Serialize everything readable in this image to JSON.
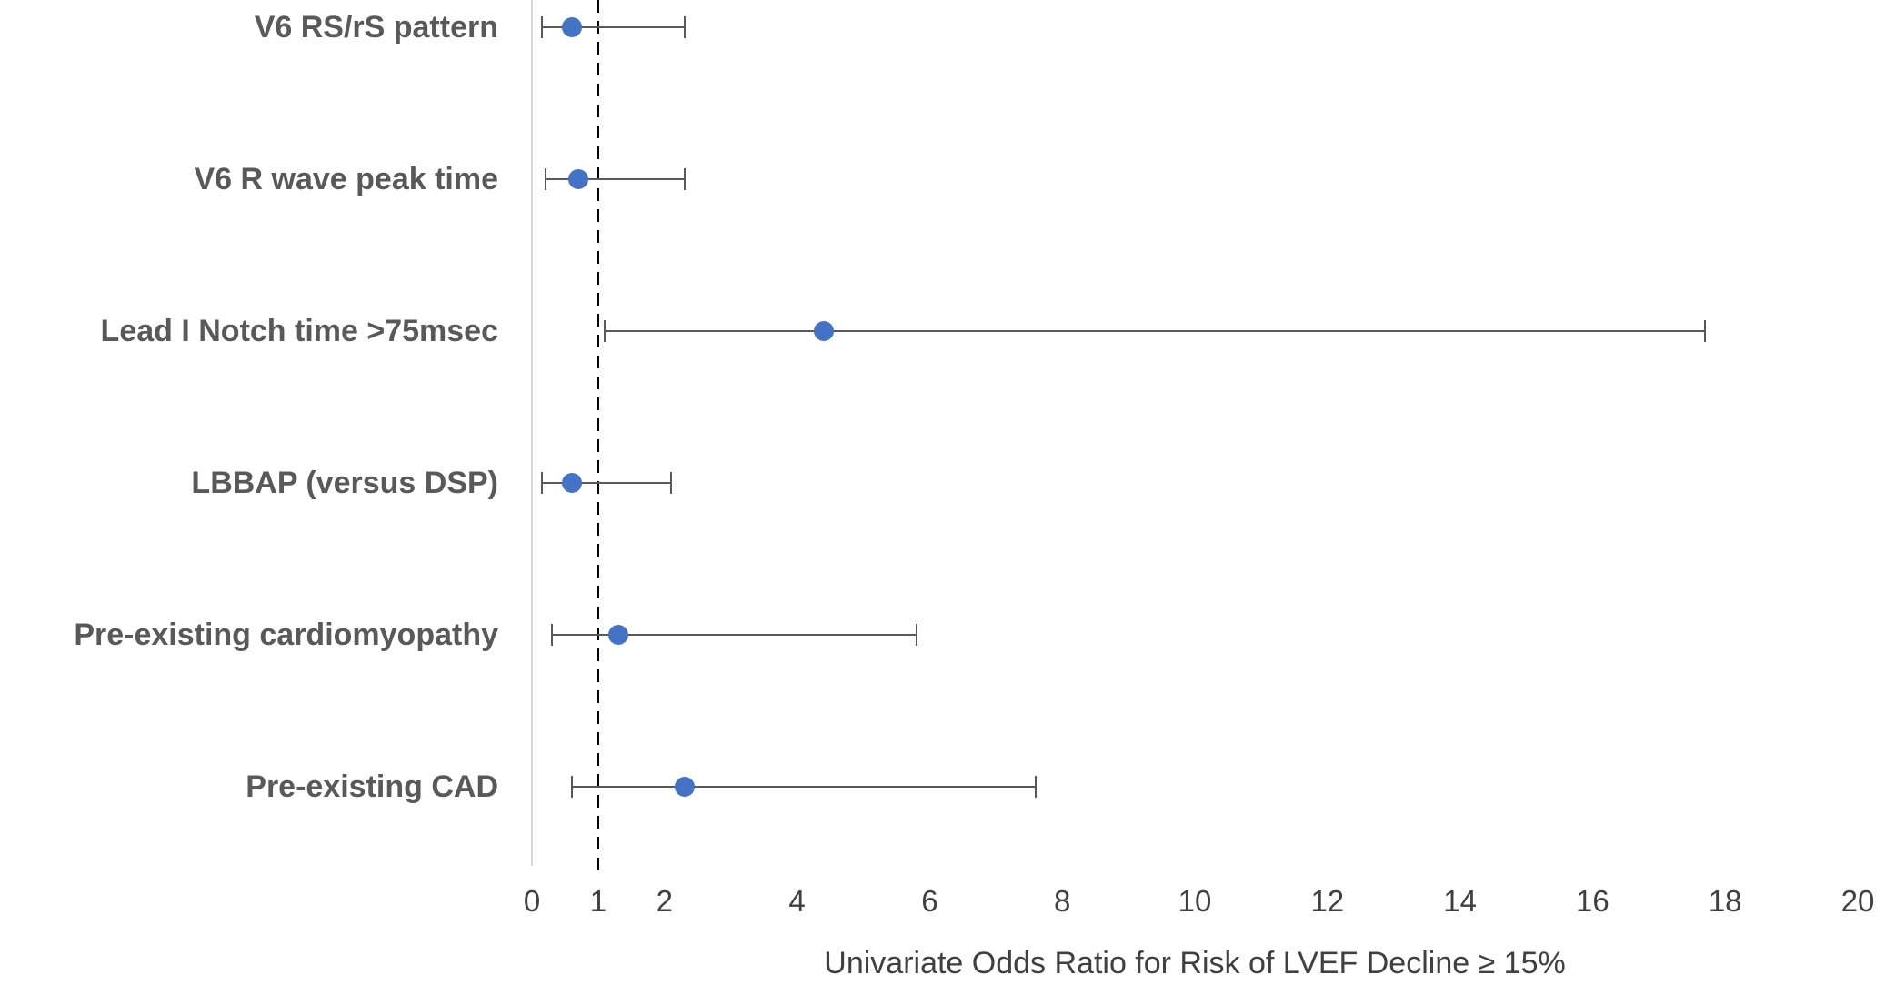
{
  "chart_data": {
    "type": "scatter",
    "subtype": "forest-plot",
    "title": "",
    "xlabel": "Univariate Odds Ratio for Risk of LVEF Decline ≥ 15%",
    "ylabel": "",
    "xlim": [
      0,
      20
    ],
    "x_ticks": [
      "0",
      "1",
      "2",
      "4",
      "6",
      "8",
      "10",
      "12",
      "14",
      "16",
      "18",
      "20"
    ],
    "reference_line_x": 1,
    "grid": false,
    "legend": "none",
    "rows": [
      {
        "label": "V6 RS/rS pattern",
        "odds_ratio": 0.6,
        "ci_low": 0.15,
        "ci_high": 2.3
      },
      {
        "label": "V6 R wave peak time",
        "odds_ratio": 0.7,
        "ci_low": 0.2,
        "ci_high": 2.3
      },
      {
        "label": "Lead I Notch time >75msec",
        "odds_ratio": 4.4,
        "ci_low": 1.1,
        "ci_high": 17.7
      },
      {
        "label": "LBBAP (versus DSP)",
        "odds_ratio": 0.6,
        "ci_low": 0.15,
        "ci_high": 2.1
      },
      {
        "label": "Pre-existing cardiomyopathy",
        "odds_ratio": 1.3,
        "ci_low": 0.3,
        "ci_high": 5.8
      },
      {
        "label": "Pre-existing CAD",
        "odds_ratio": 2.3,
        "ci_low": 0.6,
        "ci_high": 7.6
      }
    ],
    "colors": {
      "point": "#4472C4",
      "error_bar": "#595959",
      "axis_line": "#d9d9d9",
      "reference_line": "#000000",
      "label_text": "#595959",
      "tick_text": "#404040"
    }
  }
}
